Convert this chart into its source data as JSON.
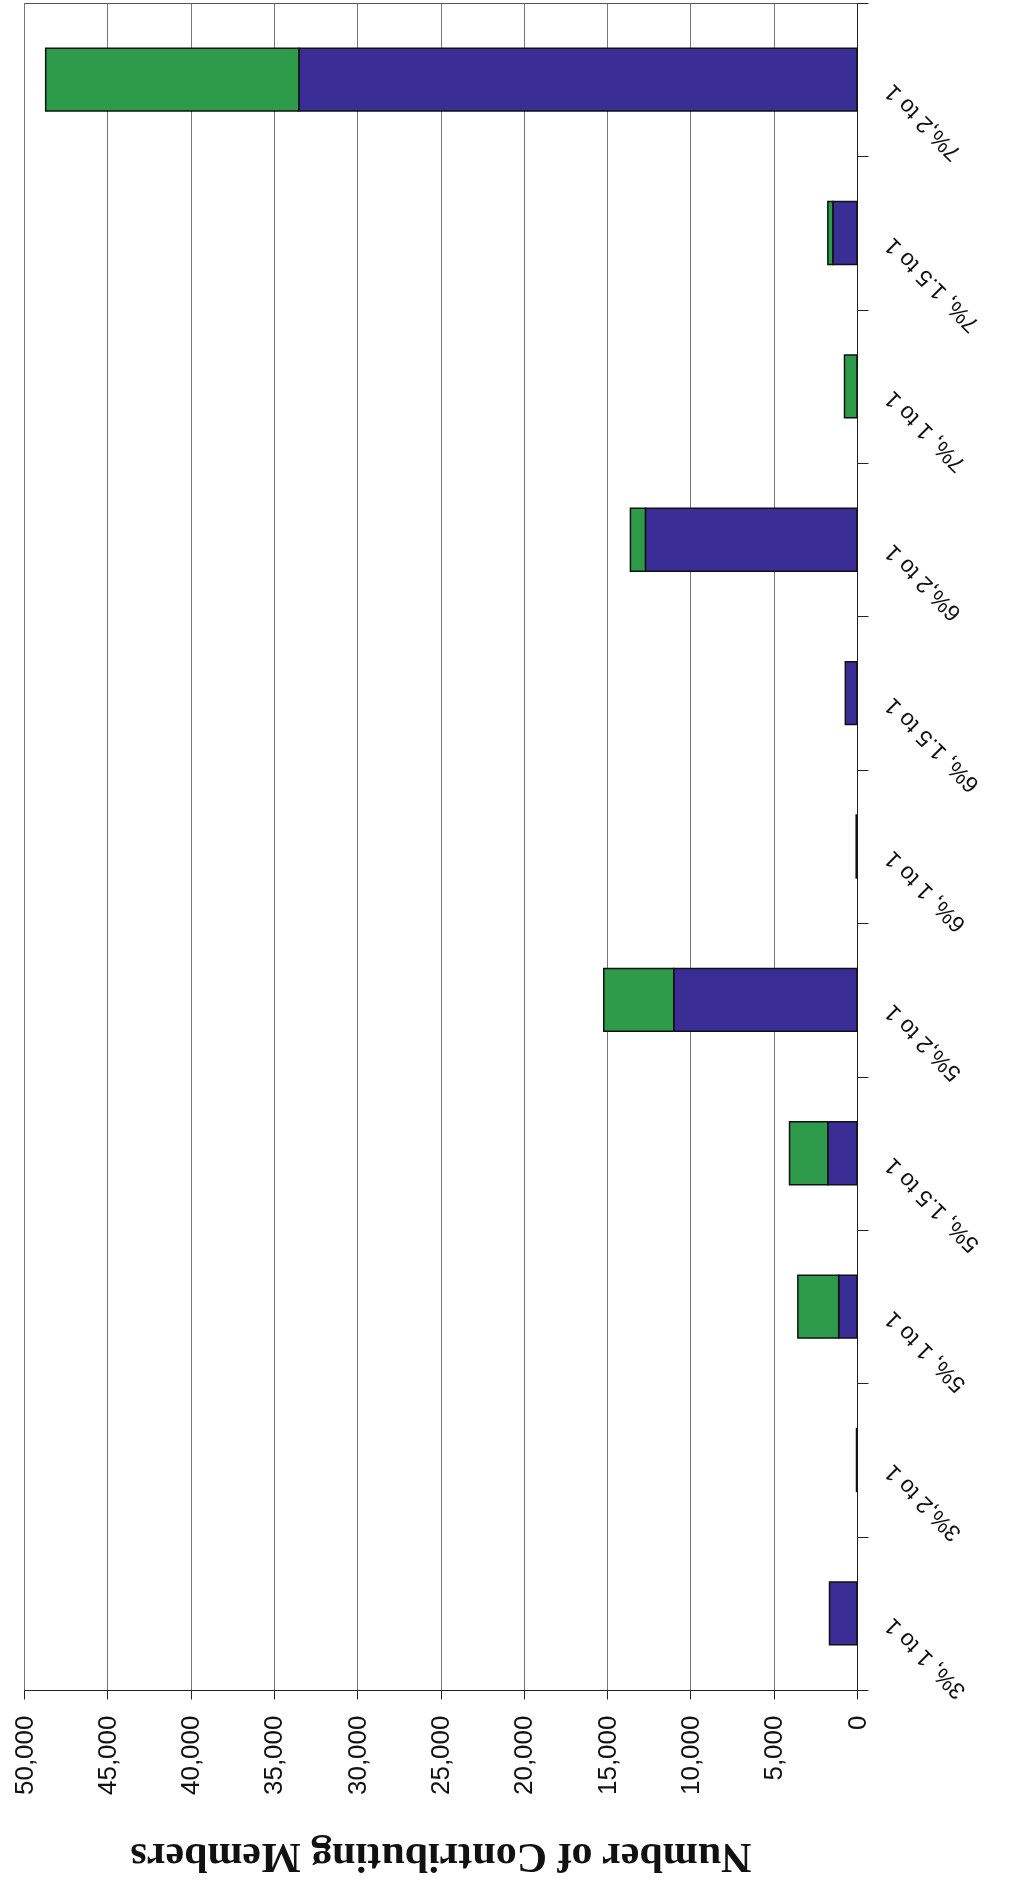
{
  "chart_data": {
    "type": "bar",
    "orientation": "horizontal",
    "stacked": true,
    "categories": [
      "7%,2 to 1",
      "7%, 1.5 to 1",
      "7%, 1 to 1",
      "6%,2 to 1",
      "6%, 1.5 to 1",
      "6%, 1 to 1",
      "5%,2 to 1",
      "5%, 1.5 to 1",
      "5%, 1 to 1",
      "3%,2 to 1",
      "3%, 1 to 1"
    ],
    "series": [
      {
        "color": "#3b2d96",
        "values": [
          33500,
          1450,
          null,
          12700,
          700,
          50,
          11000,
          1750,
          1100,
          30,
          1650
        ]
      },
      {
        "color": "#2e9b4b",
        "values": [
          15200,
          300,
          750,
          900,
          null,
          null,
          4200,
          2300,
          2450,
          null,
          null
        ]
      }
    ],
    "xlim": [
      50000,
      0
    ],
    "xticks": [
      {
        "value": 50000,
        "label": "50,000"
      },
      {
        "value": 45000,
        "label": "45,000"
      },
      {
        "value": 40000,
        "label": "40,000"
      },
      {
        "value": 35000,
        "label": "35,000"
      },
      {
        "value": 30000,
        "label": "30,000"
      },
      {
        "value": 25000,
        "label": "25,000"
      },
      {
        "value": 20000,
        "label": "20,000"
      },
      {
        "value": 15000,
        "label": "15,000"
      },
      {
        "value": 10000,
        "label": "10,000"
      },
      {
        "value": 5000,
        "label": "5,000"
      },
      0
    ],
    "xlabel": "Number of Contributing Members",
    "grid": "x"
  }
}
